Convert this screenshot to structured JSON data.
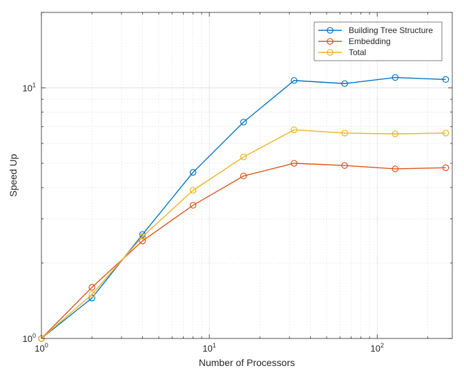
{
  "chart_data": {
    "type": "line",
    "xscale": "log",
    "yscale": "log",
    "xlabel": "Number of Processors",
    "ylabel": "Speed Up",
    "xlim": [
      1,
      280
    ],
    "ylim": [
      1,
      20
    ],
    "grid": true,
    "legend_position": "top-right",
    "x": [
      1,
      2,
      4,
      8,
      16,
      32,
      64,
      128,
      256
    ],
    "series": [
      {
        "name": "Building Tree Structure",
        "color": "#0072BD",
        "marker": "circle",
        "values": [
          1.0,
          1.45,
          2.6,
          4.6,
          7.3,
          10.7,
          10.4,
          11.0,
          10.8
        ]
      },
      {
        "name": "Embedding",
        "color": "#D95319",
        "marker": "circle",
        "values": [
          1.0,
          1.6,
          2.45,
          3.4,
          4.45,
          5.0,
          4.9,
          4.75,
          4.8
        ]
      },
      {
        "name": "Total",
        "color": "#EDB120",
        "marker": "circle",
        "values": [
          1.0,
          1.5,
          2.55,
          3.9,
          5.3,
          6.8,
          6.6,
          6.55,
          6.6
        ]
      }
    ],
    "x_ticks": [
      {
        "value": 1,
        "base": "10",
        "exp": "0"
      },
      {
        "value": 10,
        "base": "10",
        "exp": "1"
      },
      {
        "value": 100,
        "base": "10",
        "exp": "2"
      }
    ],
    "y_ticks": [
      {
        "value": 1,
        "base": "10",
        "exp": "0"
      },
      {
        "value": 10,
        "base": "10",
        "exp": "1"
      }
    ]
  }
}
